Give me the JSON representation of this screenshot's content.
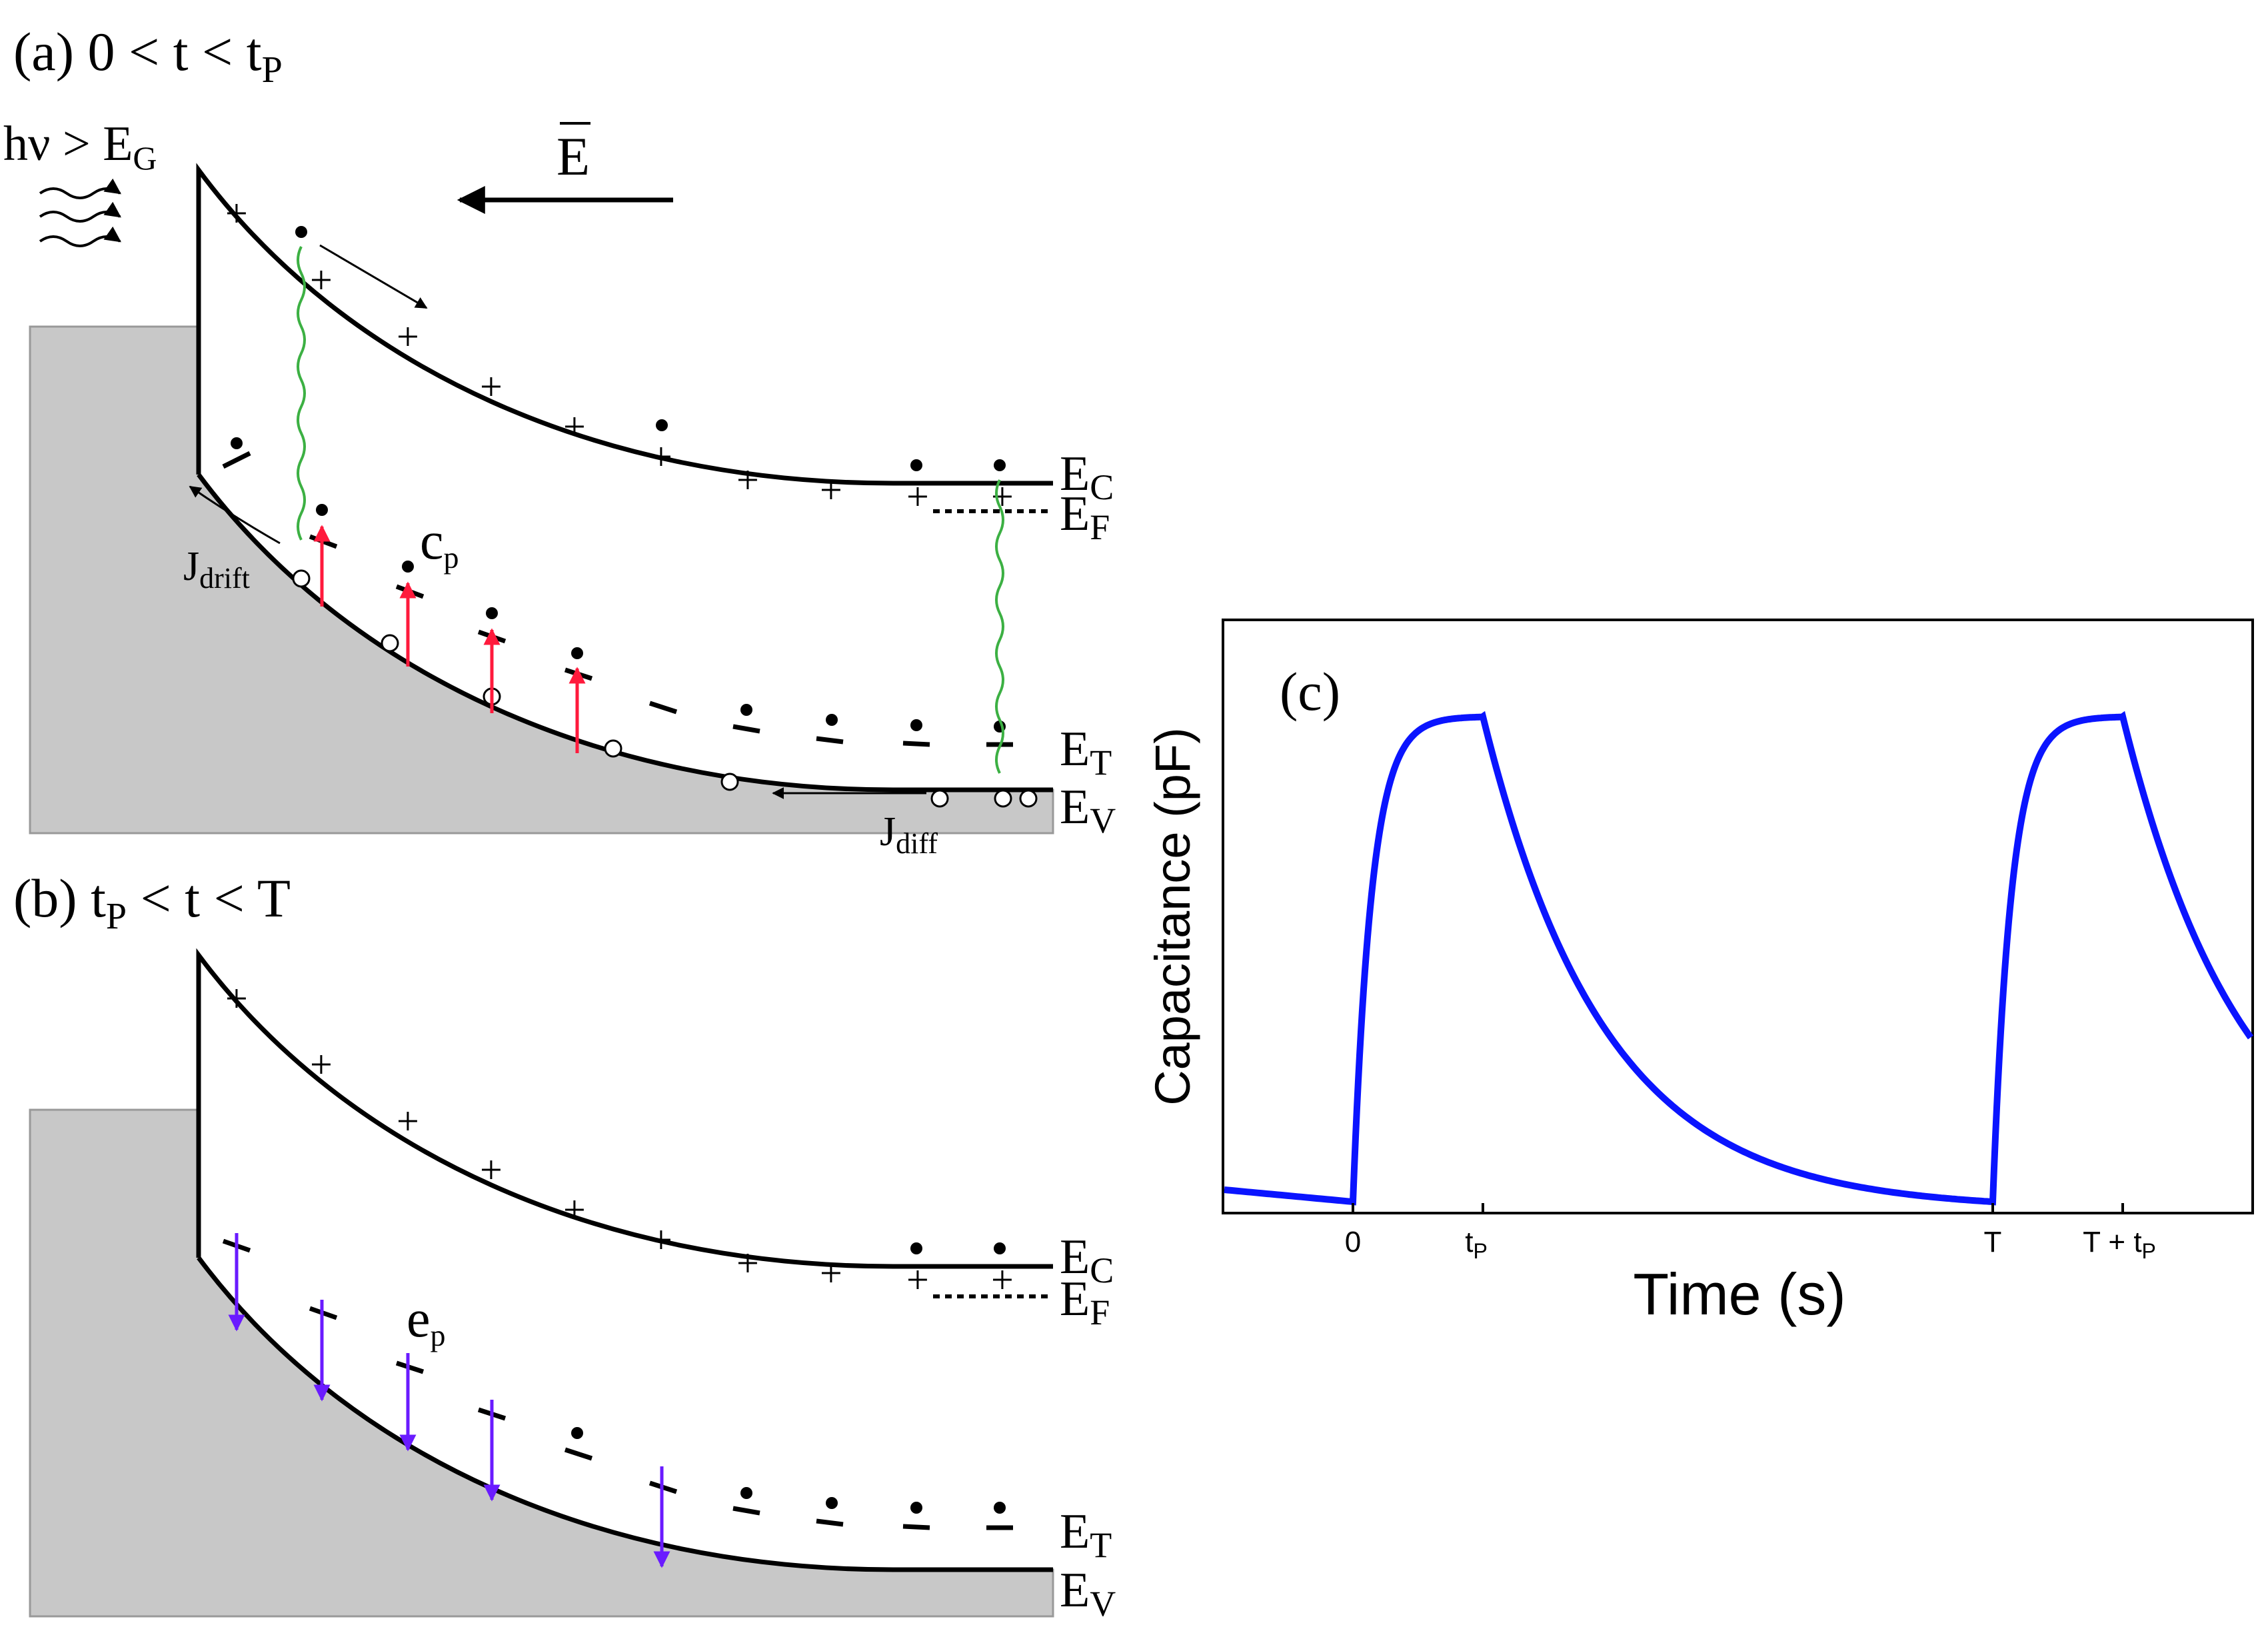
{
  "colors": {
    "band": "#000000",
    "substrate": "#c8c8c8",
    "capture_arrow": "#ff1a3c",
    "emission_arrow": "#6a1bff",
    "recombination": "#3cb043",
    "curve": "#0a14ff"
  },
  "panel_a": {
    "label": "(a) 0 < t < t",
    "label_sub": "P",
    "photon_label": "hν > E",
    "photon_sub": "G",
    "field_label": "E",
    "field_arrow": "⃗",
    "ec": "E",
    "ec_sub": "C",
    "ef": "E",
    "ef_sub": "F",
    "et": "E",
    "et_sub": "T",
    "ev": "E",
    "ev_sub": "V",
    "capture_label": "c",
    "capture_sub": "p",
    "j_drift": "J",
    "j_drift_sub": "drift",
    "j_diff": "J",
    "j_diff_sub": "diff"
  },
  "panel_b": {
    "label": "(b) t",
    "label_sub": "P",
    "label_rest": " < t < T",
    "ec": "E",
    "ec_sub": "C",
    "ef": "E",
    "ef_sub": "F",
    "et": "E",
    "et_sub": "T",
    "ev": "E",
    "ev_sub": "V",
    "emission_label": "e",
    "emission_sub": "p"
  },
  "panel_c": {
    "label": "(c)",
    "ylabel": "Capacitance (pF)",
    "xlabel": "Time (s)",
    "ticks": [
      {
        "text": "0",
        "sub": ""
      },
      {
        "text": "t",
        "sub": "P"
      },
      {
        "text": "T",
        "sub": ""
      },
      {
        "text": "T + t",
        "sub": "P"
      }
    ]
  }
}
